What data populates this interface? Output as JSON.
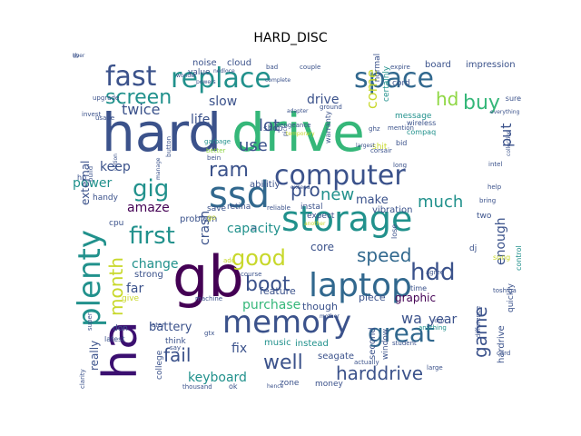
{
  "title": "HARD_DISC",
  "palette": {
    "purple": "#440154",
    "indigo": "#3b528b",
    "blue": "#31688e",
    "teal": "#21918c",
    "green": "#35b779",
    "lime": "#8fd744",
    "yellow": "#c8d82b"
  },
  "words": [
    {
      "text": "hard",
      "size": 58,
      "color": "#3b528b"
    },
    {
      "text": "drive",
      "size": 58,
      "color": "#35b779"
    },
    {
      "text": "gb",
      "size": 62,
      "color": "#440154"
    },
    {
      "text": "ha",
      "size": 52,
      "color": "#3b0f70"
    },
    {
      "text": "storage",
      "size": 38,
      "color": "#21918c"
    },
    {
      "text": "laptop",
      "size": 36,
      "color": "#31688e"
    },
    {
      "text": "memory",
      "size": 34,
      "color": "#3b528b"
    },
    {
      "text": "ssd",
      "size": 40,
      "color": "#31688e"
    },
    {
      "text": "computer",
      "size": 30,
      "color": "#3b528b"
    },
    {
      "text": "plenty",
      "size": 34,
      "color": "#21918c"
    },
    {
      "text": "replace",
      "size": 30,
      "color": "#21918c"
    },
    {
      "text": "space",
      "size": 30,
      "color": "#31688e"
    },
    {
      "text": "fast",
      "size": 30,
      "color": "#3b528b"
    },
    {
      "text": "great",
      "size": 28,
      "color": "#31688e"
    },
    {
      "text": "hdd",
      "size": 26,
      "color": "#3b528b"
    },
    {
      "text": "first",
      "size": 26,
      "color": "#21918c"
    },
    {
      "text": "good",
      "size": 24,
      "color": "#c8d82b"
    },
    {
      "text": "gig",
      "size": 26,
      "color": "#21918c"
    },
    {
      "text": "screen",
      "size": 22,
      "color": "#21918c"
    },
    {
      "text": "ram",
      "size": 22,
      "color": "#3b528b"
    },
    {
      "text": "buy",
      "size": 22,
      "color": "#35b779"
    },
    {
      "text": "hd",
      "size": 20,
      "color": "#8fd744"
    },
    {
      "text": "boot",
      "size": 22,
      "color": "#3b528b"
    },
    {
      "text": "speed",
      "size": 20,
      "color": "#31688e"
    },
    {
      "text": "harddrive",
      "size": 20,
      "color": "#3b528b"
    },
    {
      "text": "well",
      "size": 22,
      "color": "#3b528b"
    },
    {
      "text": "fail",
      "size": 20,
      "color": "#3b528b"
    },
    {
      "text": "pro",
      "size": 20,
      "color": "#3b528b"
    },
    {
      "text": "month",
      "size": 20,
      "color": "#c8d82b"
    },
    {
      "text": "game",
      "size": 20,
      "color": "#3b528b"
    },
    {
      "text": "much",
      "size": 18,
      "color": "#21918c"
    },
    {
      "text": "new",
      "size": 18,
      "color": "#21918c"
    },
    {
      "text": "lot",
      "size": 18,
      "color": "#3b528b"
    },
    {
      "text": "come",
      "size": 16,
      "color": "#c8d82b"
    },
    {
      "text": "put",
      "size": 16,
      "color": "#3b528b"
    },
    {
      "text": "twice",
      "size": 16,
      "color": "#3b528b"
    },
    {
      "text": "use",
      "size": 18,
      "color": "#3b528b"
    },
    {
      "text": "drive",
      "size": 14,
      "color": "#3b528b"
    },
    {
      "text": "slow",
      "size": 14,
      "color": "#3b528b"
    },
    {
      "text": "life",
      "size": 14,
      "color": "#3b528b"
    },
    {
      "text": "keep",
      "size": 14,
      "color": "#3b528b"
    },
    {
      "text": "power",
      "size": 14,
      "color": "#21918c"
    },
    {
      "text": "amaze",
      "size": 14,
      "color": "#440154"
    },
    {
      "text": "crash",
      "size": 14,
      "color": "#3b528b"
    },
    {
      "text": "capacity",
      "size": 14,
      "color": "#21918c"
    },
    {
      "text": "change",
      "size": 14,
      "color": "#21918c"
    },
    {
      "text": "core",
      "size": 12,
      "color": "#3b528b"
    },
    {
      "text": "make",
      "size": 13,
      "color": "#3b528b"
    },
    {
      "text": "enough",
      "size": 14,
      "color": "#3b528b"
    },
    {
      "text": "wa",
      "size": 16,
      "color": "#3b528b"
    },
    {
      "text": "year",
      "size": 14,
      "color": "#3b528b"
    },
    {
      "text": "purchase",
      "size": 14,
      "color": "#35b779"
    },
    {
      "text": "battery",
      "size": 13,
      "color": "#3b528b"
    },
    {
      "text": "keyboard",
      "size": 14,
      "color": "#21918c"
    },
    {
      "text": "fix",
      "size": 14,
      "color": "#3b528b"
    },
    {
      "text": "far",
      "size": 14,
      "color": "#3b528b"
    },
    {
      "text": "really",
      "size": 12,
      "color": "#3b528b"
    },
    {
      "text": "external",
      "size": 12,
      "color": "#3b528b"
    },
    {
      "text": "graphic",
      "size": 12,
      "color": "#440154"
    },
    {
      "text": "feature",
      "size": 11,
      "color": "#3b528b"
    },
    {
      "text": "though",
      "size": 11,
      "color": "#3b528b"
    },
    {
      "text": "piece",
      "size": 11,
      "color": "#3b528b"
    },
    {
      "text": "seagate",
      "size": 10,
      "color": "#3b528b"
    },
    {
      "text": "abilitiy",
      "size": 10,
      "color": "#3b528b"
    },
    {
      "text": "retina",
      "size": 9,
      "color": "#3b528b"
    },
    {
      "text": "instal",
      "size": 9,
      "color": "#3b528b"
    },
    {
      "text": "vibration",
      "size": 10,
      "color": "#3b528b"
    },
    {
      "text": "expect",
      "size": 9,
      "color": "#3b528b"
    },
    {
      "text": "problem",
      "size": 10,
      "color": "#3b528b"
    },
    {
      "text": "strong",
      "size": 10,
      "color": "#3b528b"
    },
    {
      "text": "music",
      "size": 10,
      "color": "#21918c"
    },
    {
      "text": "instead",
      "size": 10,
      "color": "#21918c"
    },
    {
      "text": "second",
      "size": 10,
      "color": "#3b528b"
    },
    {
      "text": "window",
      "size": 9,
      "color": "#3b528b"
    },
    {
      "text": "quickly",
      "size": 9,
      "color": "#3b528b"
    },
    {
      "text": "hardrive",
      "size": 10,
      "color": "#3b528b"
    },
    {
      "text": "money",
      "size": 9,
      "color": "#3b528b"
    },
    {
      "text": "zone",
      "size": 9,
      "color": "#3b528b"
    },
    {
      "text": "college",
      "size": 9,
      "color": "#3b528b"
    },
    {
      "text": "think",
      "size": 9,
      "color": "#3b528b"
    },
    {
      "text": "don",
      "size": 9,
      "color": "#3b528b"
    },
    {
      "text": "give",
      "size": 9,
      "color": "#c8d82b"
    },
    {
      "text": "handy",
      "size": 9,
      "color": "#3b528b"
    },
    {
      "text": "cpu",
      "size": 9,
      "color": "#3b528b"
    },
    {
      "text": "save",
      "size": 9,
      "color": "#3b528b"
    },
    {
      "text": "noise",
      "size": 10,
      "color": "#3b528b"
    },
    {
      "text": "cloud",
      "size": 10,
      "color": "#3b528b"
    },
    {
      "text": "value",
      "size": 9,
      "color": "#3b528b"
    },
    {
      "text": "impression",
      "size": 10,
      "color": "#3b528b"
    },
    {
      "text": "board",
      "size": 10,
      "color": "#3b528b"
    },
    {
      "text": "cord",
      "size": 9,
      "color": "#3b528b"
    },
    {
      "text": "normal",
      "size": 9,
      "color": "#3b528b"
    },
    {
      "text": "certainly",
      "size": 9,
      "color": "#21918c"
    },
    {
      "text": "message",
      "size": 9,
      "color": "#21918c"
    },
    {
      "text": "wireless",
      "size": 8,
      "color": "#3b528b"
    },
    {
      "text": "compaq",
      "size": 8,
      "color": "#21918c"
    },
    {
      "text": "shop",
      "size": 9,
      "color": "#3b528b"
    },
    {
      "text": "warranty",
      "size": 8,
      "color": "#3b528b"
    },
    {
      "text": "bid",
      "size": 8,
      "color": "#3b528b"
    },
    {
      "text": "shit",
      "size": 9,
      "color": "#c8d82b"
    },
    {
      "text": "two",
      "size": 9,
      "color": "#3b528b"
    },
    {
      "text": "dj",
      "size": 9,
      "color": "#3b528b"
    },
    {
      "text": "lose",
      "size": 8,
      "color": "#3b528b"
    },
    {
      "text": "time",
      "size": 8,
      "color": "#3b528b"
    },
    {
      "text": "agree",
      "size": 7,
      "color": "#3b528b"
    },
    {
      "text": "control",
      "size": 8,
      "color": "#21918c"
    },
    {
      "text": "song",
      "size": 8,
      "color": "#c8d82b"
    },
    {
      "text": "sure",
      "size": 8,
      "color": "#3b528b"
    },
    {
      "text": "usage",
      "size": 7,
      "color": "#3b528b"
    },
    {
      "text": "latest",
      "size": 8,
      "color": "#3b528b"
    },
    {
      "text": "ok",
      "size": 8,
      "color": "#3b528b"
    },
    {
      "text": "thousand",
      "size": 7,
      "color": "#3b528b"
    },
    {
      "text": "later",
      "size": 7,
      "color": "#3b528b"
    },
    {
      "text": "machine",
      "size": 7,
      "color": "#3b528b"
    },
    {
      "text": "course",
      "size": 7,
      "color": "#3b528b"
    },
    {
      "text": "add",
      "size": 7,
      "color": "#c8d82b"
    },
    {
      "text": "anything",
      "size": 7,
      "color": "#21918c"
    },
    {
      "text": "student",
      "size": 7,
      "color": "#3b528b"
    },
    {
      "text": "difference",
      "size": 7,
      "color": "#3b528b"
    },
    {
      "text": "toshiba",
      "size": 7,
      "color": "#3b528b"
    },
    {
      "text": "bring",
      "size": 7,
      "color": "#3b528b"
    },
    {
      "text": "help",
      "size": 7,
      "color": "#3b528b"
    },
    {
      "text": "intel",
      "size": 7,
      "color": "#3b528b"
    },
    {
      "text": "ghz",
      "size": 7,
      "color": "#3b528b"
    },
    {
      "text": "corsair",
      "size": 7,
      "color": "#3b528b"
    },
    {
      "text": "long",
      "size": 7,
      "color": "#3b528b"
    },
    {
      "text": "mention",
      "size": 7,
      "color": "#3b528b"
    },
    {
      "text": "expire",
      "size": 7,
      "color": "#3b528b"
    },
    {
      "text": "bad",
      "size": 7,
      "color": "#3b528b"
    },
    {
      "text": "couple",
      "size": 7,
      "color": "#3b528b"
    },
    {
      "text": "upgrade",
      "size": 7,
      "color": "#3b528b"
    },
    {
      "text": "invest",
      "size": 7,
      "color": "#3b528b"
    },
    {
      "text": "build",
      "size": 7,
      "color": "#3b528b"
    },
    {
      "text": "hp",
      "size": 8,
      "color": "#3b528b"
    },
    {
      "text": "button",
      "size": 7,
      "color": "#3b528b"
    },
    {
      "text": "vengeance",
      "size": 7,
      "color": "#3b528b"
    },
    {
      "text": "garbage",
      "size": 7,
      "color": "#21918c"
    },
    {
      "text": "better",
      "size": 7,
      "color": "#8fd744"
    },
    {
      "text": "card",
      "size": 7,
      "color": "#3b528b"
    },
    {
      "text": "large",
      "size": 7,
      "color": "#3b528b"
    },
    {
      "text": "actually",
      "size": 7,
      "color": "#3b528b"
    },
    {
      "text": "gtx",
      "size": 7,
      "color": "#3b528b"
    },
    {
      "text": "say",
      "size": 7,
      "color": "#3b528b"
    },
    {
      "text": "ground",
      "size": 7,
      "color": "#3b528b"
    },
    {
      "text": "ill",
      "size": 7,
      "color": "#3b528b"
    },
    {
      "text": "go",
      "size": 8,
      "color": "#c8d82b"
    },
    {
      "text": "super",
      "size": 7,
      "color": "#3b528b"
    },
    {
      "text": "clarity",
      "size": 7,
      "color": "#3b528b"
    },
    {
      "text": "reliable",
      "size": 7,
      "color": "#3b528b"
    },
    {
      "text": "collection",
      "size": 6,
      "color": "#3b528b"
    },
    {
      "text": "room",
      "size": 6,
      "color": "#3b528b"
    },
    {
      "text": "another",
      "size": 6,
      "color": "#c8d82b"
    },
    {
      "text": "adapter",
      "size": 6,
      "color": "#3b528b"
    },
    {
      "text": "pick",
      "size": 6,
      "color": "#3b528b"
    },
    {
      "text": "bein",
      "size": 7,
      "color": "#3b528b"
    },
    {
      "text": "option",
      "size": 6,
      "color": "#3b528b"
    },
    {
      "text": "manage",
      "size": 6,
      "color": "#3b528b"
    },
    {
      "text": "exceed",
      "size": 6,
      "color": "#3b528b"
    },
    {
      "text": "temporary",
      "size": 6,
      "color": "#c8d82b"
    },
    {
      "text": "mother",
      "size": 6,
      "color": "#3b528b"
    },
    {
      "text": "hence",
      "size": 6,
      "color": "#3b528b"
    },
    {
      "text": "complete",
      "size": 6,
      "color": "#3b528b"
    },
    {
      "text": "everything",
      "size": 6,
      "color": "#3b528b"
    },
    {
      "text": "wonder",
      "size": 6,
      "color": "#3b528b"
    },
    {
      "text": "powers",
      "size": 6,
      "color": "#3b528b"
    },
    {
      "text": "nedloce",
      "size": 6,
      "color": "#3b528b"
    },
    {
      "text": "largest",
      "size": 6,
      "color": "#3b528b"
    },
    {
      "text": "ever",
      "size": 6,
      "color": "#3b528b"
    },
    {
      "text": "tb",
      "size": 7,
      "color": "#3b528b"
    }
  ]
}
